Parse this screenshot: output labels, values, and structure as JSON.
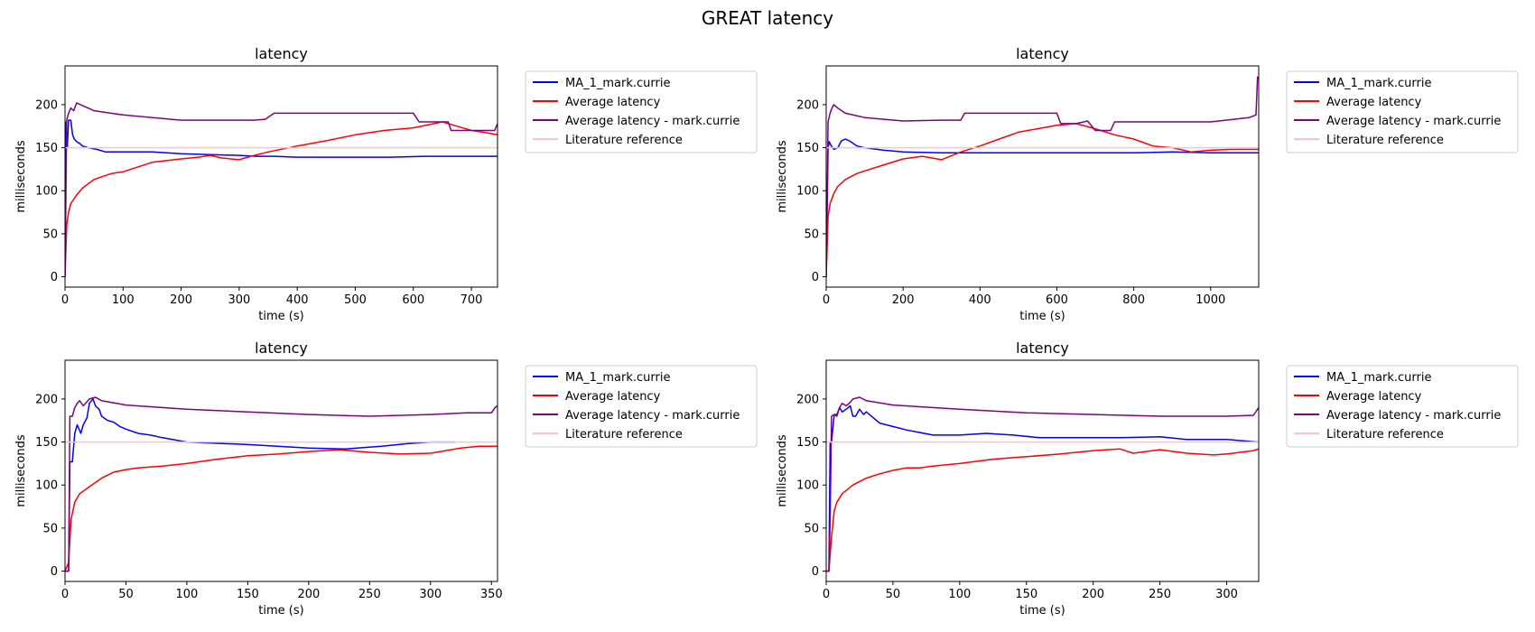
{
  "figure": {
    "title": "GREAT latency"
  },
  "chart_data": [
    {
      "type": "line",
      "title": "latency",
      "xlabel": "time (s)",
      "ylabel": "milliseconds",
      "xlim": [
        0,
        745
      ],
      "ylim": [
        -12,
        245
      ],
      "xticks": [
        0,
        100,
        200,
        300,
        400,
        500,
        600,
        700
      ],
      "yticks": [
        0,
        50,
        100,
        150,
        200
      ],
      "legend_position": "outside-right",
      "series": [
        {
          "name": "MA_1_mark.currie",
          "color": "#0000ff",
          "x": [
            0,
            2,
            4,
            6,
            10,
            13,
            16,
            20,
            25,
            30,
            40,
            55,
            70,
            100,
            150,
            200,
            250,
            300,
            330,
            360,
            400,
            450,
            500,
            560,
            620,
            680,
            745
          ],
          "y": [
            0,
            180,
            150,
            182,
            182,
            165,
            160,
            157,
            155,
            152,
            150,
            148,
            145,
            145,
            145,
            143,
            142,
            141,
            140,
            140,
            139,
            139,
            139,
            139,
            140,
            140,
            140
          ]
        },
        {
          "name": "Average latency",
          "color": "#ff0000",
          "x": [
            0,
            3,
            6,
            10,
            20,
            30,
            50,
            80,
            100,
            150,
            200,
            230,
            250,
            270,
            300,
            320,
            350,
            400,
            450,
            500,
            550,
            600,
            650,
            680,
            700,
            720,
            745
          ],
          "y": [
            0,
            60,
            75,
            85,
            95,
            103,
            113,
            120,
            122,
            133,
            137,
            139,
            141,
            138,
            136,
            140,
            145,
            152,
            158,
            165,
            170,
            173,
            180,
            174,
            170,
            168,
            165
          ]
        },
        {
          "name": "Average latency - mark.currie",
          "color": "#800080",
          "x": [
            0,
            3,
            6,
            10,
            15,
            20,
            30,
            50,
            100,
            200,
            300,
            325,
            345,
            360,
            400,
            500,
            600,
            610,
            640,
            660,
            665,
            680,
            740,
            745
          ],
          "y": [
            0,
            182,
            190,
            196,
            193,
            202,
            199,
            193,
            188,
            182,
            182,
            182,
            183,
            190,
            190,
            190,
            190,
            180,
            180,
            180,
            170,
            170,
            170,
            178
          ]
        },
        {
          "name": "Literature reference",
          "color": "#ffc0cb",
          "x": [
            0,
            745
          ],
          "y": [
            150,
            150
          ]
        }
      ]
    },
    {
      "type": "line",
      "title": "latency",
      "xlabel": "time (s)",
      "ylabel": "milliseconds",
      "xlim": [
        0,
        1125
      ],
      "ylim": [
        -12,
        245
      ],
      "xticks": [
        0,
        200,
        400,
        600,
        800,
        1000
      ],
      "yticks": [
        0,
        50,
        100,
        150,
        200
      ],
      "legend_position": "outside-right",
      "series": [
        {
          "name": "MA_1_mark.currie",
          "color": "#0000ff",
          "x": [
            0,
            5,
            8,
            12,
            20,
            30,
            40,
            50,
            60,
            70,
            80,
            100,
            150,
            200,
            300,
            400,
            500,
            600,
            700,
            800,
            900,
            1000,
            1100,
            1125
          ],
          "y": [
            0,
            150,
            157,
            153,
            148,
            150,
            158,
            160,
            158,
            155,
            152,
            150,
            147,
            145,
            144,
            144,
            144,
            144,
            144,
            144,
            145,
            144,
            144,
            144
          ]
        },
        {
          "name": "Average latency",
          "color": "#ff0000",
          "x": [
            0,
            5,
            10,
            20,
            30,
            50,
            80,
            100,
            150,
            200,
            250,
            300,
            350,
            400,
            450,
            500,
            550,
            600,
            650,
            700,
            750,
            800,
            850,
            900,
            950,
            1000,
            1050,
            1100,
            1125
          ],
          "y": [
            0,
            70,
            85,
            97,
            105,
            113,
            120,
            123,
            130,
            137,
            140,
            136,
            145,
            152,
            160,
            168,
            172,
            176,
            178,
            172,
            165,
            160,
            152,
            150,
            145,
            147,
            148,
            148,
            148
          ]
        },
        {
          "name": "Average latency - mark.currie",
          "color": "#800080",
          "x": [
            0,
            5,
            10,
            15,
            20,
            25,
            30,
            50,
            100,
            200,
            300,
            330,
            350,
            360,
            500,
            600,
            610,
            650,
            680,
            700,
            740,
            750,
            800,
            1000,
            1100,
            1118,
            1122,
            1125
          ],
          "y": [
            0,
            180,
            190,
            196,
            200,
            198,
            196,
            190,
            185,
            181,
            182,
            182,
            182,
            190,
            190,
            190,
            178,
            178,
            181,
            170,
            170,
            180,
            180,
            180,
            185,
            188,
            232,
            230
          ]
        },
        {
          "name": "Literature reference",
          "color": "#ffc0cb",
          "x": [
            0,
            1125
          ],
          "y": [
            150,
            150
          ]
        }
      ]
    },
    {
      "type": "line",
      "title": "latency",
      "xlabel": "time (s)",
      "ylabel": "milliseconds",
      "xlim": [
        0,
        355
      ],
      "ylim": [
        -12,
        245
      ],
      "xticks": [
        0,
        50,
        100,
        150,
        200,
        250,
        300,
        350
      ],
      "yticks": [
        0,
        50,
        100,
        150,
        200
      ],
      "legend_position": "outside-right",
      "series": [
        {
          "name": "MA_1_mark.currie",
          "color": "#0000ff",
          "x": [
            0,
            3,
            4,
            6,
            8,
            10,
            13,
            15,
            18,
            20,
            23,
            25,
            28,
            30,
            35,
            40,
            45,
            50,
            60,
            70,
            80,
            100,
            150,
            200,
            230,
            260,
            280,
            300,
            320
          ],
          "y": [
            0,
            0,
            127,
            127,
            160,
            170,
            160,
            170,
            178,
            195,
            200,
            192,
            188,
            180,
            175,
            173,
            168,
            165,
            160,
            158,
            155,
            150,
            147,
            143,
            142,
            145,
            148,
            150,
            150
          ]
        },
        {
          "name": "Average latency",
          "color": "#ff0000",
          "x": [
            0,
            3,
            5,
            8,
            12,
            20,
            30,
            40,
            50,
            60,
            80,
            100,
            125,
            150,
            175,
            200,
            225,
            250,
            275,
            300,
            325,
            340,
            355
          ],
          "y": [
            0,
            10,
            60,
            80,
            90,
            98,
            108,
            115,
            118,
            120,
            122,
            125,
            130,
            134,
            136,
            139,
            141,
            138,
            136,
            137,
            143,
            145,
            145
          ]
        },
        {
          "name": "Average latency - mark.currie",
          "color": "#800080",
          "x": [
            0,
            3,
            4,
            6,
            8,
            10,
            12,
            15,
            20,
            25,
            30,
            50,
            100,
            150,
            200,
            250,
            300,
            330,
            350,
            353,
            355
          ],
          "y": [
            0,
            0,
            180,
            180,
            190,
            195,
            198,
            192,
            200,
            202,
            198,
            193,
            188,
            185,
            182,
            180,
            182,
            184,
            184,
            190,
            192
          ]
        },
        {
          "name": "Literature reference",
          "color": "#ffc0cb",
          "x": [
            0,
            355
          ],
          "y": [
            150,
            150
          ]
        }
      ]
    },
    {
      "type": "line",
      "title": "latency",
      "xlabel": "time (s)",
      "ylabel": "milliseconds",
      "xlim": [
        0,
        324
      ],
      "ylim": [
        -12,
        245
      ],
      "xticks": [
        0,
        50,
        100,
        150,
        200,
        250,
        300
      ],
      "yticks": [
        0,
        50,
        100,
        150,
        200
      ],
      "legend_position": "outside-right",
      "series": [
        {
          "name": "MA_1_mark.currie",
          "color": "#0000ff",
          "x": [
            0,
            2,
            3,
            4,
            6,
            8,
            10,
            12,
            15,
            18,
            20,
            22,
            25,
            28,
            30,
            40,
            50,
            60,
            80,
            100,
            120,
            140,
            160,
            180,
            200,
            220,
            250,
            270,
            300,
            324
          ],
          "y": [
            0,
            0,
            150,
            150,
            182,
            182,
            190,
            185,
            188,
            192,
            180,
            180,
            188,
            182,
            185,
            172,
            168,
            164,
            158,
            158,
            160,
            158,
            155,
            155,
            155,
            155,
            156,
            153,
            153,
            150
          ]
        },
        {
          "name": "Average latency",
          "color": "#ff0000",
          "x": [
            0,
            2,
            4,
            6,
            8,
            12,
            20,
            30,
            40,
            50,
            60,
            70,
            80,
            100,
            125,
            150,
            175,
            200,
            220,
            230,
            250,
            270,
            290,
            300,
            310,
            320,
            324
          ],
          "y": [
            0,
            0,
            40,
            70,
            80,
            90,
            100,
            108,
            113,
            117,
            120,
            120,
            122,
            125,
            130,
            133,
            136,
            140,
            142,
            137,
            141,
            137,
            135,
            136,
            138,
            140,
            142
          ]
        },
        {
          "name": "Average latency - mark.currie",
          "color": "#800080",
          "x": [
            0,
            2,
            3,
            4,
            6,
            8,
            10,
            12,
            15,
            18,
            20,
            25,
            30,
            50,
            100,
            150,
            200,
            250,
            300,
            320,
            324
          ],
          "y": [
            0,
            0,
            60,
            180,
            182,
            180,
            190,
            195,
            192,
            196,
            200,
            202,
            198,
            193,
            188,
            184,
            182,
            180,
            180,
            181,
            190
          ]
        },
        {
          "name": "Literature reference",
          "color": "#ffc0cb",
          "x": [
            0,
            324
          ],
          "y": [
            150,
            150
          ]
        }
      ]
    }
  ]
}
